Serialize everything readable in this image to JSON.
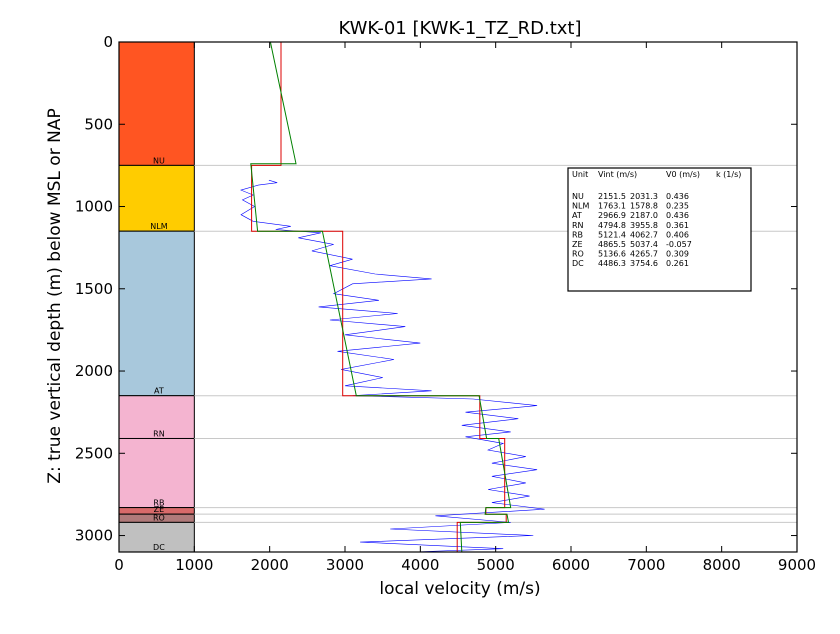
{
  "chart_data": {
    "type": "line",
    "title": "KWK-01 [KWK-1_TZ_RD.txt]",
    "xlabel": "local velocity (m/s)",
    "ylabel": "Z: true vertical depth (m) below MSL or NAP",
    "xlim": [
      0,
      9000
    ],
    "ylim": [
      3100,
      0
    ],
    "x_ticks": [
      "0",
      "1000",
      "2000",
      "3000",
      "4000",
      "5000",
      "6000",
      "7000",
      "8000",
      "9000"
    ],
    "y_ticks": [
      "0",
      "500",
      "1000",
      "1500",
      "2000",
      "2500",
      "3000"
    ],
    "x_tick_values": [
      0,
      1000,
      2000,
      3000,
      4000,
      5000,
      6000,
      7000,
      8000,
      9000
    ],
    "y_tick_values": [
      0,
      500,
      1000,
      1500,
      2000,
      2500,
      3000
    ],
    "colors": {
      "measured": "#0000ff",
      "interval_velocity": "#dd0000",
      "linear_fit": "#008000",
      "boundary": "#c8c8c8"
    },
    "units": [
      {
        "name": "NU",
        "top": 0,
        "base": 750,
        "vint": 2151.5,
        "v0": 2031.3,
        "k": 0.436,
        "color": "#ff5522"
      },
      {
        "name": "NLM",
        "top": 750,
        "base": 1150,
        "vint": 1763.1,
        "v0": 1578.8,
        "k": 0.235,
        "color": "#ffcc00"
      },
      {
        "name": "AT",
        "top": 1150,
        "base": 2150,
        "vint": 2966.9,
        "v0": 2187.0,
        "k": 0.436,
        "color": "#a8c8dc"
      },
      {
        "name": "RN",
        "top": 2150,
        "base": 2410,
        "vint": 4794.8,
        "v0": 3955.8,
        "k": 0.361,
        "color": "#f4b4d0"
      },
      {
        "name": "RB",
        "top": 2410,
        "base": 2830,
        "vint": 5121.4,
        "v0": 4062.7,
        "k": 0.406,
        "color": "#f4b4d0"
      },
      {
        "name": "ZE",
        "top": 2830,
        "base": 2870,
        "vint": 4865.5,
        "v0": 5037.4,
        "k": -0.057,
        "color": "#d86a6a"
      },
      {
        "name": "RO",
        "top": 2870,
        "base": 2920,
        "vint": 5136.6,
        "v0": 4265.7,
        "k": 0.309,
        "color": "#b07a7a"
      },
      {
        "name": "DC",
        "top": 2920,
        "base": 3100,
        "vint": 4486.3,
        "v0": 3754.6,
        "k": 0.261,
        "color": "#c0c0c0"
      }
    ],
    "interval_velocity_series": {
      "name": "Vint",
      "points": [
        [
          2150,
          0
        ],
        [
          2150,
          750
        ],
        [
          1760,
          750
        ],
        [
          1760,
          1150
        ],
        [
          2970,
          1150
        ],
        [
          2970,
          2150
        ],
        [
          4790,
          2150
        ],
        [
          4790,
          2410
        ],
        [
          5120,
          2410
        ],
        [
          5120,
          2830
        ],
        [
          4870,
          2830
        ],
        [
          4870,
          2870
        ],
        [
          5140,
          2870
        ],
        [
          5140,
          2920
        ],
        [
          4490,
          2920
        ],
        [
          4490,
          3100
        ]
      ]
    },
    "linear_fit_series": {
      "name": "V0 + kZ",
      "points": [
        [
          2010,
          0
        ],
        [
          2350,
          740
        ],
        [
          1750,
          740
        ],
        [
          1840,
          1150
        ],
        [
          2700,
          1150
        ],
        [
          3150,
          2150
        ],
        [
          4780,
          2150
        ],
        [
          4880,
          2410
        ],
        [
          5040,
          2410
        ],
        [
          5200,
          2830
        ],
        [
          4870,
          2830
        ],
        [
          4860,
          2870
        ],
        [
          5150,
          2870
        ],
        [
          5170,
          2920
        ],
        [
          4530,
          2920
        ],
        [
          4550,
          3100
        ]
      ]
    },
    "measured_series": {
      "name": "local velocity",
      "points": [
        [
          1990,
          840
        ],
        [
          2100,
          855
        ],
        [
          1850,
          870
        ],
        [
          1620,
          900
        ],
        [
          1780,
          930
        ],
        [
          1640,
          960
        ],
        [
          1800,
          1000
        ],
        [
          1620,
          1050
        ],
        [
          1780,
          1090
        ],
        [
          2280,
          1120
        ],
        [
          2080,
          1140
        ],
        [
          2680,
          1160
        ],
        [
          2380,
          1190
        ],
        [
          2850,
          1230
        ],
        [
          2560,
          1270
        ],
        [
          3100,
          1320
        ],
        [
          2800,
          1360
        ],
        [
          3400,
          1410
        ],
        [
          4150,
          1440
        ],
        [
          3100,
          1470
        ],
        [
          2850,
          1530
        ],
        [
          3450,
          1570
        ],
        [
          2650,
          1610
        ],
        [
          3700,
          1650
        ],
        [
          2800,
          1690
        ],
        [
          3800,
          1730
        ],
        [
          3000,
          1780
        ],
        [
          4000,
          1830
        ],
        [
          2900,
          1880
        ],
        [
          3650,
          1930
        ],
        [
          2950,
          1990
        ],
        [
          3500,
          2040
        ],
        [
          3000,
          2090
        ],
        [
          4150,
          2120
        ],
        [
          3100,
          2150
        ],
        [
          4700,
          2170
        ],
        [
          5550,
          2210
        ],
        [
          4600,
          2250
        ],
        [
          5300,
          2290
        ],
        [
          4550,
          2330
        ],
        [
          5200,
          2370
        ],
        [
          4600,
          2400
        ],
        [
          5100,
          2440
        ],
        [
          4900,
          2480
        ],
        [
          5400,
          2520
        ],
        [
          4950,
          2560
        ],
        [
          5550,
          2600
        ],
        [
          4950,
          2640
        ],
        [
          5400,
          2680
        ],
        [
          4900,
          2720
        ],
        [
          5450,
          2760
        ],
        [
          4950,
          2800
        ],
        [
          5650,
          2840
        ],
        [
          4200,
          2880
        ],
        [
          5200,
          2920
        ],
        [
          3600,
          2960
        ],
        [
          5500,
          3000
        ],
        [
          3200,
          3040
        ],
        [
          5100,
          3080
        ],
        [
          3900,
          3100
        ]
      ]
    },
    "legend": {
      "header": [
        "Unit",
        "Vint (m/s)",
        "V0 (m/s)",
        "k (1/s)"
      ],
      "placement": "right"
    }
  }
}
